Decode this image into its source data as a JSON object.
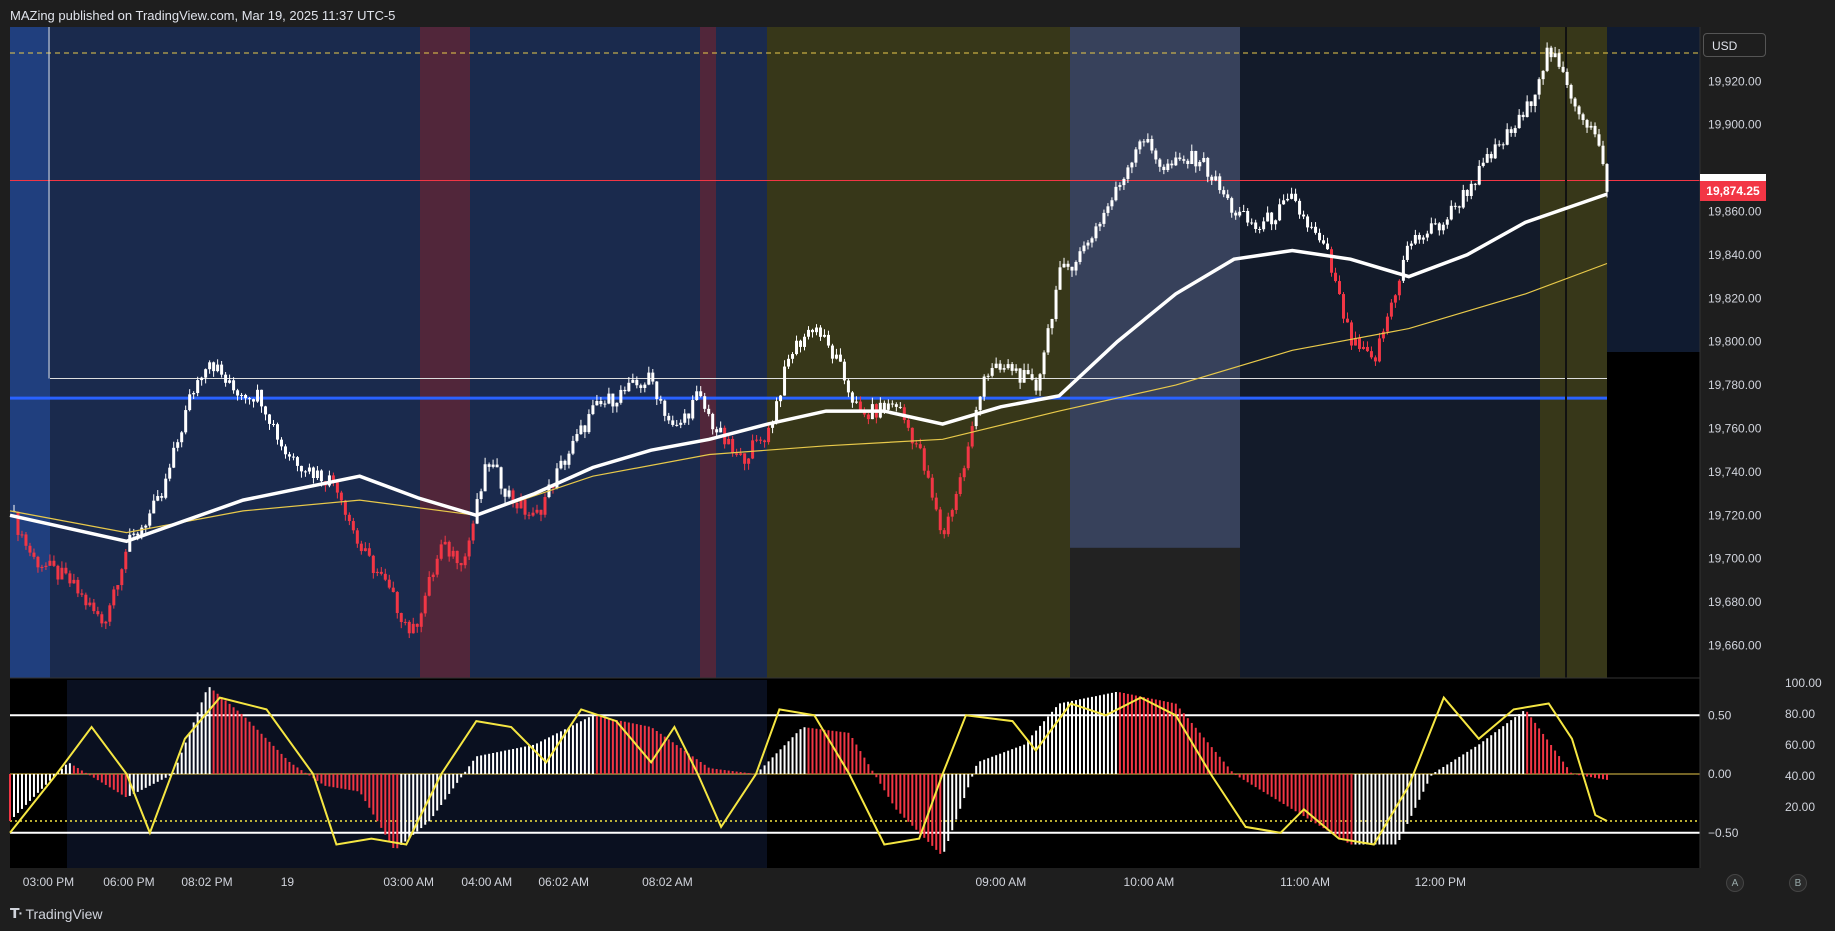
{
  "header": {
    "attribution": "MAZing published on TradingView.com, Mar 19, 2025 11:37 UTC-5"
  },
  "toolbar": {
    "currency": "USD",
    "btn_a": "A",
    "btn_b": "B"
  },
  "footer": {
    "logo_text": "TradingView"
  },
  "colors": {
    "bull": "#ffffff",
    "bear": "#f23645",
    "ema_fast": "#ffffff",
    "ema_slow": "#e8c94a",
    "level_blue": "#2962ff",
    "osc_line": "#f5e642"
  },
  "price_badge": "19,874.25",
  "chart_data": [
    {
      "type": "candlestick",
      "title": "",
      "ylim": [
        19645,
        19945
      ],
      "y_ticks": [
        "19,660.00",
        "19,680.00",
        "19,700.00",
        "19,720.00",
        "19,740.00",
        "19,760.00",
        "19,780.00",
        "19,800.00",
        "19,820.00",
        "19,840.00",
        "19,860.00",
        "19,900.00",
        "19,920.00"
      ],
      "y_tick_values": [
        19660,
        19680,
        19700,
        19720,
        19740,
        19760,
        19780,
        19800,
        19820,
        19840,
        19860,
        19900,
        19920
      ],
      "x_ticks": [
        "03:00 PM",
        "06:00 PM",
        "08:02 PM",
        "19",
        "03:00 AM",
        "04:00 AM",
        "06:02 AM",
        "08:02 AM",
        "09:00 AM",
        "10:00 AM",
        "11:00 AM",
        "12:00 PM"
      ],
      "x_tick_pos": [
        0.033,
        0.102,
        0.169,
        0.238,
        0.342,
        0.409,
        0.475,
        0.564,
        0.85,
        0.977,
        1.111,
        1.227
      ],
      "last_price": 19874.25,
      "levels": [
        {
          "name": "blue-level",
          "value": 19774
        },
        {
          "name": "white-level",
          "value": 19783
        },
        {
          "name": "yellow-dashed-level",
          "value": 19933
        },
        {
          "name": "red-level",
          "value": 19874.25
        }
      ],
      "close_path": [
        [
          0,
          19722
        ],
        [
          0.02,
          19700
        ],
        [
          0.05,
          19690
        ],
        [
          0.08,
          19670
        ],
        [
          0.1,
          19705
        ],
        [
          0.13,
          19728
        ],
        [
          0.155,
          19775
        ],
        [
          0.17,
          19793
        ],
        [
          0.19,
          19778
        ],
        [
          0.215,
          19775
        ],
        [
          0.235,
          19750
        ],
        [
          0.26,
          19740
        ],
        [
          0.28,
          19735
        ],
        [
          0.3,
          19705
        ],
        [
          0.32,
          19690
        ],
        [
          0.345,
          19665
        ],
        [
          0.37,
          19705
        ],
        [
          0.39,
          19700
        ],
        [
          0.41,
          19745
        ],
        [
          0.43,
          19728
        ],
        [
          0.45,
          19718
        ],
        [
          0.47,
          19740
        ],
        [
          0.5,
          19768
        ],
        [
          0.52,
          19775
        ],
        [
          0.55,
          19783
        ],
        [
          0.57,
          19758
        ],
        [
          0.59,
          19775
        ],
        [
          0.605,
          19760
        ],
        [
          0.625,
          19745
        ],
        [
          0.65,
          19758
        ],
        [
          0.67,
          19795
        ],
        [
          0.69,
          19808
        ],
        [
          0.71,
          19790
        ],
        [
          0.73,
          19765
        ],
        [
          0.76,
          19772
        ],
        [
          0.78,
          19750
        ],
        [
          0.8,
          19710
        ],
        [
          0.82,
          19745
        ],
        [
          0.835,
          19785
        ],
        [
          0.86,
          19788
        ],
        [
          0.88,
          19778
        ],
        [
          0.9,
          19830
        ],
        [
          0.92,
          19842
        ],
        [
          0.95,
          19870
        ],
        [
          0.97,
          19895
        ],
        [
          0.99,
          19880
        ],
        [
          1.02,
          19885
        ],
        [
          1.05,
          19860
        ],
        [
          1.07,
          19852
        ],
        [
          1.1,
          19865
        ],
        [
          1.13,
          19840
        ],
        [
          1.15,
          19800
        ],
        [
          1.17,
          19790
        ],
        [
          1.2,
          19845
        ],
        [
          1.23,
          19855
        ],
        [
          1.25,
          19870
        ],
        [
          1.27,
          19885
        ],
        [
          1.3,
          19905
        ],
        [
          1.32,
          19935
        ],
        [
          1.345,
          19908
        ],
        [
          1.36,
          19895
        ],
        [
          1.37,
          19872
        ]
      ],
      "ema_fast_path": [
        [
          0,
          19720
        ],
        [
          0.1,
          19708
        ],
        [
          0.2,
          19727
        ],
        [
          0.3,
          19738
        ],
        [
          0.35,
          19728
        ],
        [
          0.4,
          19720
        ],
        [
          0.45,
          19730
        ],
        [
          0.5,
          19742
        ],
        [
          0.55,
          19750
        ],
        [
          0.6,
          19755
        ],
        [
          0.65,
          19762
        ],
        [
          0.7,
          19768
        ],
        [
          0.75,
          19768
        ],
        [
          0.8,
          19762
        ],
        [
          0.85,
          19770
        ],
        [
          0.9,
          19775
        ],
        [
          0.95,
          19800
        ],
        [
          1.0,
          19822
        ],
        [
          1.05,
          19838
        ],
        [
          1.1,
          19842
        ],
        [
          1.15,
          19838
        ],
        [
          1.2,
          19830
        ],
        [
          1.25,
          19840
        ],
        [
          1.3,
          19855
        ],
        [
          1.37,
          19868
        ]
      ],
      "ema_slow_path": [
        [
          0,
          19722
        ],
        [
          0.1,
          19712
        ],
        [
          0.2,
          19722
        ],
        [
          0.3,
          19727
        ],
        [
          0.4,
          19720
        ],
        [
          0.5,
          19738
        ],
        [
          0.6,
          19748
        ],
        [
          0.7,
          19752
        ],
        [
          0.8,
          19755
        ],
        [
          0.9,
          19768
        ],
        [
          1.0,
          19780
        ],
        [
          1.1,
          19796
        ],
        [
          1.2,
          19806
        ],
        [
          1.3,
          19822
        ],
        [
          1.37,
          19836
        ]
      ]
    },
    {
      "type": "oscillator",
      "title": "",
      "left_ticks": [
        "0.50",
        "0.00",
        "−0.50"
      ],
      "left_tick_values": [
        0.5,
        0.0,
        -0.5
      ],
      "right_ticks": [
        "100.00",
        "80.00",
        "60.00",
        "40.00",
        "20.00"
      ],
      "ylim": [
        -0.8,
        0.8
      ],
      "bands": [
        0.5,
        -0.5
      ],
      "dotted_level": -0.4,
      "histogram_path": [
        [
          0,
          -0.4
        ],
        [
          0.05,
          0.1
        ],
        [
          0.1,
          -0.2
        ],
        [
          0.14,
          0.0
        ],
        [
          0.17,
          0.75
        ],
        [
          0.2,
          0.5
        ],
        [
          0.24,
          0.1
        ],
        [
          0.27,
          -0.1
        ],
        [
          0.3,
          -0.15
        ],
        [
          0.33,
          -0.65
        ],
        [
          0.36,
          -0.4
        ],
        [
          0.4,
          0.15
        ],
        [
          0.45,
          0.25
        ],
        [
          0.5,
          0.5
        ],
        [
          0.55,
          0.4
        ],
        [
          0.6,
          0.05
        ],
        [
          0.64,
          0.0
        ],
        [
          0.68,
          0.4
        ],
        [
          0.72,
          0.35
        ],
        [
          0.76,
          -0.3
        ],
        [
          0.8,
          -0.7
        ],
        [
          0.83,
          0.1
        ],
        [
          0.87,
          0.25
        ],
        [
          0.9,
          0.6
        ],
        [
          0.95,
          0.7
        ],
        [
          1.0,
          0.6
        ],
        [
          1.05,
          0.0
        ],
        [
          1.1,
          -0.3
        ],
        [
          1.15,
          -0.6
        ],
        [
          1.19,
          -0.6
        ],
        [
          1.22,
          0.0
        ],
        [
          1.26,
          0.25
        ],
        [
          1.3,
          0.55
        ],
        [
          1.34,
          0.0
        ],
        [
          1.37,
          -0.05
        ]
      ],
      "line_path": [
        [
          0,
          -0.5
        ],
        [
          0.04,
          0.0
        ],
        [
          0.07,
          0.4
        ],
        [
          0.1,
          0.0
        ],
        [
          0.12,
          -0.5
        ],
        [
          0.15,
          0.3
        ],
        [
          0.18,
          0.65
        ],
        [
          0.22,
          0.55
        ],
        [
          0.26,
          0.0
        ],
        [
          0.28,
          -0.6
        ],
        [
          0.31,
          -0.55
        ],
        [
          0.34,
          -0.6
        ],
        [
          0.37,
          0.0
        ],
        [
          0.4,
          0.45
        ],
        [
          0.43,
          0.4
        ],
        [
          0.46,
          0.1
        ],
        [
          0.49,
          0.55
        ],
        [
          0.52,
          0.45
        ],
        [
          0.55,
          0.1
        ],
        [
          0.57,
          0.4
        ],
        [
          0.59,
          0.0
        ],
        [
          0.61,
          -0.45
        ],
        [
          0.64,
          0.0
        ],
        [
          0.66,
          0.55
        ],
        [
          0.69,
          0.5
        ],
        [
          0.72,
          0.0
        ],
        [
          0.75,
          -0.6
        ],
        [
          0.78,
          -0.55
        ],
        [
          0.8,
          0.0
        ],
        [
          0.82,
          0.5
        ],
        [
          0.86,
          0.45
        ],
        [
          0.88,
          0.2
        ],
        [
          0.91,
          0.6
        ],
        [
          0.94,
          0.5
        ],
        [
          0.97,
          0.65
        ],
        [
          1.0,
          0.5
        ],
        [
          1.03,
          0.0
        ],
        [
          1.06,
          -0.45
        ],
        [
          1.09,
          -0.5
        ],
        [
          1.11,
          -0.3
        ],
        [
          1.14,
          -0.55
        ],
        [
          1.17,
          -0.6
        ],
        [
          1.2,
          -0.1
        ],
        [
          1.23,
          0.65
        ],
        [
          1.26,
          0.3
        ],
        [
          1.29,
          0.55
        ],
        [
          1.32,
          0.6
        ],
        [
          1.34,
          0.3
        ],
        [
          1.36,
          -0.35
        ],
        [
          1.37,
          -0.4
        ]
      ]
    }
  ]
}
